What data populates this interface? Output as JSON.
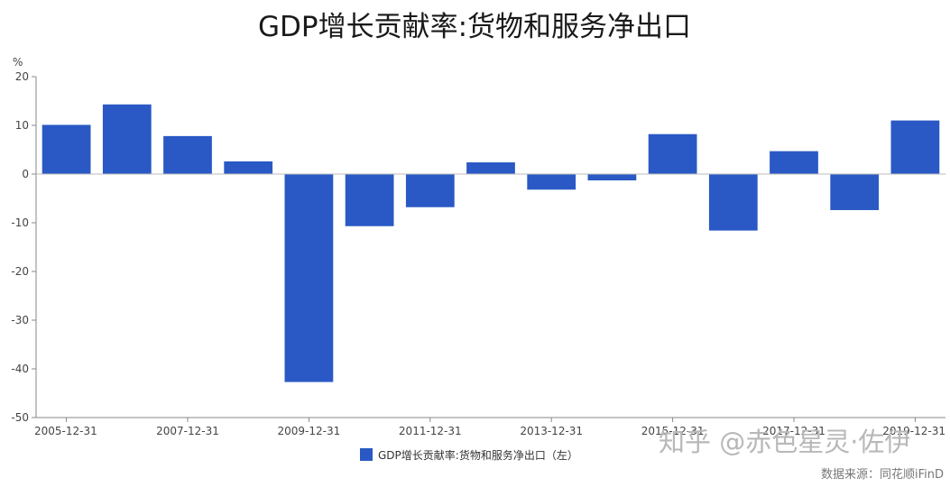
{
  "chart_data": {
    "type": "bar",
    "title": "GDP增长贡献率:货物和服务净出口",
    "unit": "%",
    "ylim": [
      -50,
      20
    ],
    "yticks": [
      20,
      10,
      0,
      -10,
      -20,
      -30,
      -40,
      -50
    ],
    "categories": [
      "2005-12-31",
      "2006-12-31",
      "2007-12-31",
      "2008-12-31",
      "2009-12-31",
      "2010-12-31",
      "2011-12-31",
      "2012-12-31",
      "2013-12-31",
      "2014-12-31",
      "2015-12-31",
      "2016-12-31",
      "2017-12-31",
      "2018-12-31",
      "2019-12-31"
    ],
    "xtick_labels": [
      "2005-12-31",
      "2007-12-31",
      "2009-12-31",
      "2011-12-31",
      "2013-12-31",
      "2015-12-31",
      "2017-12-31",
      "2019-12-31"
    ],
    "series": [
      {
        "name": "GDP增长贡献率:货物和服务净出口（左）",
        "values": [
          10.1,
          14.3,
          7.8,
          2.6,
          -42.7,
          -10.7,
          -6.8,
          2.4,
          -3.2,
          -1.3,
          8.2,
          -11.6,
          4.7,
          -7.4,
          11.0
        ]
      }
    ],
    "grid": false,
    "legend_position": "bottom-center",
    "bar_color": "#2a59c5"
  },
  "watermark": "知乎 @赤色星灵·佐伊",
  "source": "数据来源：同花顺iFinD"
}
